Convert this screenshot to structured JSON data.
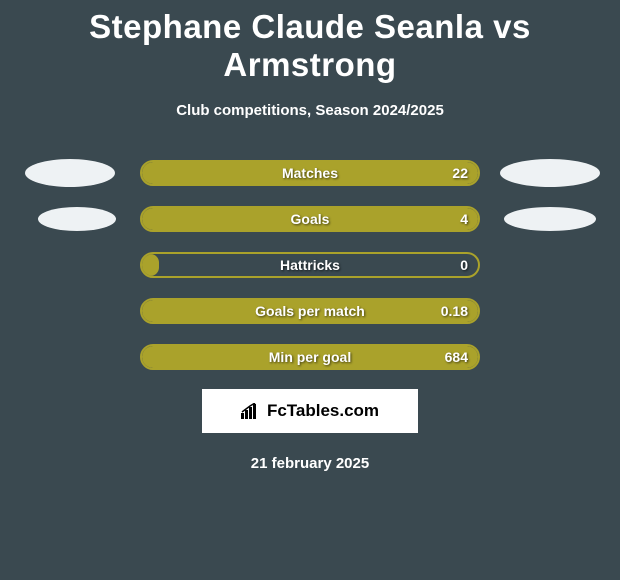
{
  "background_color": "#3a4950",
  "text_color": "#ffffff",
  "title": "Stephane Claude Seanla vs Armstrong",
  "title_fontsize": 33,
  "subtitle": "Club competitions, Season 2024/2025",
  "subtitle_fontsize": 15,
  "bar_fill_color": "#aaa22b",
  "bar_border_color": "#aaa22b",
  "ellipse_color": "#eef2f4",
  "stats": [
    {
      "label": "Matches",
      "value": "22",
      "fill_pct": 100,
      "left_ellipse": true,
      "right_ellipse": true
    },
    {
      "label": "Goals",
      "value": "4",
      "fill_pct": 100,
      "left_ellipse": true,
      "right_ellipse": true
    },
    {
      "label": "Hattricks",
      "value": "0",
      "fill_pct": 5,
      "left_ellipse": false,
      "right_ellipse": false
    },
    {
      "label": "Goals per match",
      "value": "0.18",
      "fill_pct": 100,
      "left_ellipse": false,
      "right_ellipse": false
    },
    {
      "label": "Min per goal",
      "value": "684",
      "fill_pct": 100,
      "left_ellipse": false,
      "right_ellipse": false
    }
  ],
  "logo_text": "FcTables.com",
  "date": "21 february 2025"
}
